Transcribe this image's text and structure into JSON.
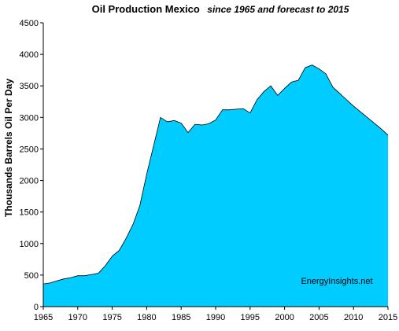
{
  "chart_data": {
    "type": "area",
    "title": "Oil Production Mexico",
    "subtitle": "since 1965 and forecast to 2015",
    "xlabel": "",
    "ylabel": "Thousands Barrels Oil Per Day",
    "xlim": [
      1965,
      2015
    ],
    "ylim": [
      0,
      4500
    ],
    "x_ticks": [
      1965,
      1970,
      1975,
      1980,
      1985,
      1990,
      1995,
      2000,
      2005,
      2010,
      2015
    ],
    "y_ticks": [
      0,
      500,
      1000,
      1500,
      2000,
      2500,
      3000,
      3500,
      4000,
      4500
    ],
    "grid": false,
    "legend": "none",
    "annotation": "EnergyInsights.net",
    "colors": {
      "fill": "#00ccff",
      "stroke": "#000000",
      "plot_background": "#ffffff",
      "axis": "#000000"
    },
    "series": [
      {
        "x": [
          1965,
          1966,
          1967,
          1968,
          1969,
          1970,
          1971,
          1972,
          1973,
          1974,
          1975,
          1976,
          1977,
          1978,
          1979,
          1980,
          1981,
          1982,
          1983,
          1984,
          1985,
          1986,
          1987,
          1988,
          1989,
          1990,
          1991,
          1992,
          1993,
          1994,
          1995,
          1996,
          1997,
          1998,
          1999,
          2000,
          2001,
          2002,
          2003,
          2004,
          2005,
          2006,
          2007,
          2008,
          2009,
          2010,
          2011,
          2012,
          2013,
          2014,
          2015
        ],
        "values": [
          360,
          375,
          410,
          440,
          460,
          490,
          490,
          510,
          530,
          650,
          800,
          890,
          1080,
          1300,
          1600,
          2100,
          2550,
          3000,
          2930,
          2950,
          2910,
          2760,
          2890,
          2880,
          2900,
          2960,
          3120,
          3120,
          3130,
          3140,
          3070,
          3280,
          3410,
          3500,
          3350,
          3460,
          3560,
          3590,
          3790,
          3830,
          3770,
          3690,
          3480,
          3380,
          3280,
          3180,
          3090,
          3000,
          2910,
          2820,
          2720
        ]
      }
    ]
  }
}
